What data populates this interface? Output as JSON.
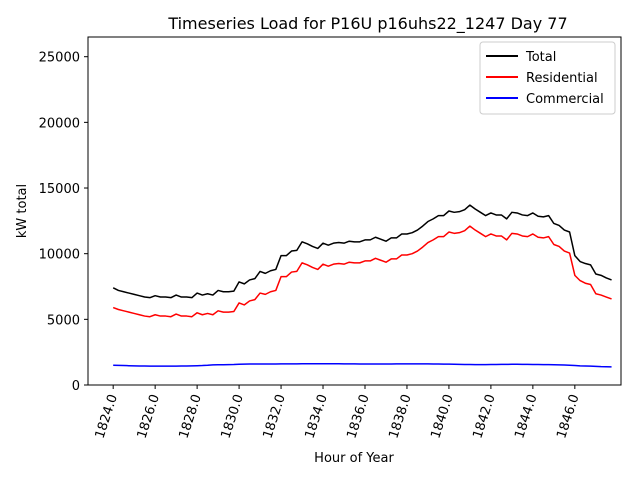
{
  "chart_data": {
    "type": "line",
    "title": "Timeseries Load for P16U p16uhs22_1247  Day 77",
    "xlabel": "Hour of Year",
    "ylabel": "kW total",
    "xlim": [
      1822.8,
      1848.2
    ],
    "ylim": [
      0,
      26500
    ],
    "x_ticks": [
      1824,
      1826,
      1828,
      1830,
      1832,
      1834,
      1836,
      1838,
      1840,
      1842,
      1844,
      1846
    ],
    "x_tick_labels": [
      "1824.0",
      "1826.0",
      "1828.0",
      "1830.0",
      "1832.0",
      "1834.0",
      "1836.0",
      "1838.0",
      "1840.0",
      "1842.0",
      "1844.0",
      "1846.0"
    ],
    "y_ticks": [
      0,
      5000,
      10000,
      15000,
      20000,
      25000
    ],
    "y_tick_labels": [
      "0",
      "5000",
      "10000",
      "15000",
      "20000",
      "25000"
    ],
    "legend_position": "top-right",
    "x_start": 1824,
    "x_step": 0.25,
    "series": [
      {
        "name": "Total",
        "color": "#000000",
        "values": [
          7400,
          7200,
          7100,
          7000,
          6900,
          6800,
          6700,
          6650,
          6800,
          6700,
          6700,
          6650,
          6850,
          6700,
          6700,
          6650,
          7000,
          6850,
          6950,
          6850,
          7200,
          7100,
          7100,
          7150,
          7850,
          7700,
          8000,
          8100,
          8650,
          8500,
          8700,
          8800,
          9850,
          9850,
          10200,
          10250,
          10900,
          10750,
          10550,
          10400,
          10800,
          10650,
          10800,
          10850,
          10800,
          10950,
          10900,
          10900,
          11050,
          11050,
          11250,
          11100,
          10950,
          11200,
          11200,
          11500,
          11500,
          11600,
          11800,
          12100,
          12450,
          12650,
          12900,
          12900,
          13250,
          13150,
          13200,
          13350,
          13700,
          13400,
          13150,
          12900,
          13100,
          12950,
          12950,
          12650,
          13150,
          13100,
          12950,
          12900,
          13100,
          12850,
          12800,
          12900,
          12300,
          12150,
          11800,
          11650,
          9850,
          9400,
          9250,
          9150,
          8450,
          8350,
          8150,
          8000
        ]
      },
      {
        "name": "Residential",
        "color": "#ff0000",
        "values": [
          5900,
          5750,
          5650,
          5550,
          5450,
          5350,
          5250,
          5200,
          5350,
          5250,
          5250,
          5200,
          5400,
          5250,
          5250,
          5200,
          5500,
          5350,
          5450,
          5350,
          5650,
          5550,
          5550,
          5600,
          6250,
          6100,
          6400,
          6500,
          7000,
          6900,
          7100,
          7200,
          8250,
          8250,
          8600,
          8650,
          9300,
          9150,
          8950,
          8800,
          9200,
          9050,
          9200,
          9250,
          9200,
          9350,
          9300,
          9300,
          9450,
          9450,
          9650,
          9500,
          9350,
          9600,
          9600,
          9900,
          9900,
          10000,
          10200,
          10500,
          10850,
          11050,
          11300,
          11300,
          11650,
          11550,
          11600,
          11750,
          12100,
          11800,
          11550,
          11300,
          11500,
          11350,
          11350,
          11050,
          11550,
          11500,
          11350,
          11300,
          11500,
          11250,
          11200,
          11300,
          10700,
          10550,
          10200,
          10050,
          8350,
          7950,
          7750,
          7650,
          6950,
          6850,
          6700,
          6550
        ]
      },
      {
        "name": "Commercial",
        "color": "#0000ff",
        "values": [
          1500,
          1490,
          1480,
          1470,
          1460,
          1450,
          1450,
          1440,
          1440,
          1440,
          1440,
          1440,
          1440,
          1450,
          1450,
          1460,
          1470,
          1480,
          1500,
          1530,
          1540,
          1540,
          1550,
          1560,
          1580,
          1590,
          1600,
          1600,
          1600,
          1600,
          1600,
          1600,
          1610,
          1610,
          1610,
          1610,
          1620,
          1620,
          1620,
          1620,
          1620,
          1620,
          1620,
          1620,
          1610,
          1610,
          1610,
          1600,
          1600,
          1600,
          1600,
          1600,
          1600,
          1600,
          1610,
          1610,
          1610,
          1610,
          1610,
          1610,
          1610,
          1600,
          1600,
          1590,
          1590,
          1580,
          1570,
          1560,
          1560,
          1550,
          1550,
          1550,
          1560,
          1560,
          1570,
          1570,
          1580,
          1580,
          1570,
          1570,
          1560,
          1560,
          1550,
          1550,
          1540,
          1530,
          1520,
          1500,
          1480,
          1460,
          1450,
          1440,
          1420,
          1400,
          1390,
          1380
        ]
      }
    ]
  }
}
